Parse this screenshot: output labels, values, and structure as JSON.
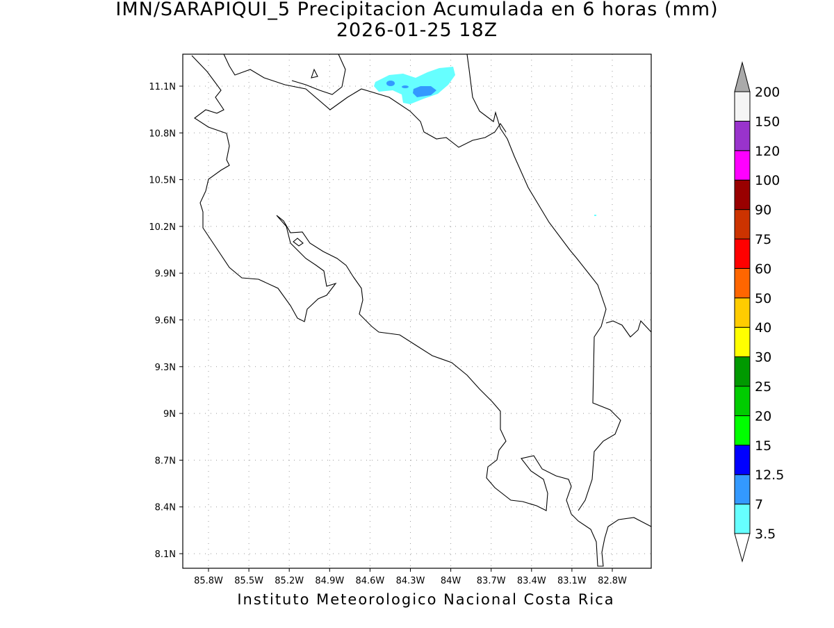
{
  "title": "IMN/SARAPIQUI_5 Precipitacion Acumulada en 6 horas (mm)",
  "subtitle": "2026-01-25 18Z",
  "map": {
    "lat_labels": [
      "11.1N",
      "10.8N",
      "10.5N",
      "10.2N",
      "9.9N",
      "9.6N",
      "9.3N",
      "9N",
      "8.7N",
      "8.4N",
      "8.1N"
    ],
    "lon_labels": [
      "85.8W",
      "85.5W",
      "85.2W",
      "84.9W",
      "84.6W",
      "84.3W",
      "84W",
      "83.7W",
      "83.4W",
      "83.1W",
      "82.8W"
    ]
  },
  "colorbar": {
    "levels": [
      3.5,
      7,
      12.5,
      15,
      20,
      25,
      30,
      40,
      50,
      60,
      75,
      90,
      100,
      120,
      150,
      200
    ],
    "colors": [
      "#ffffff",
      "#66ffff",
      "#3399ff",
      "#0000ff",
      "#00ff00",
      "#00cc00",
      "#009900",
      "#ffff00",
      "#ffcc00",
      "#ff6600",
      "#ff0000",
      "#cc3300",
      "#990000",
      "#ff00ff",
      "#9933cc",
      "#f5f5f5",
      "#aaaaaa"
    ]
  },
  "footer": "Instituto Meteorologico Nacional Costa Rica"
}
